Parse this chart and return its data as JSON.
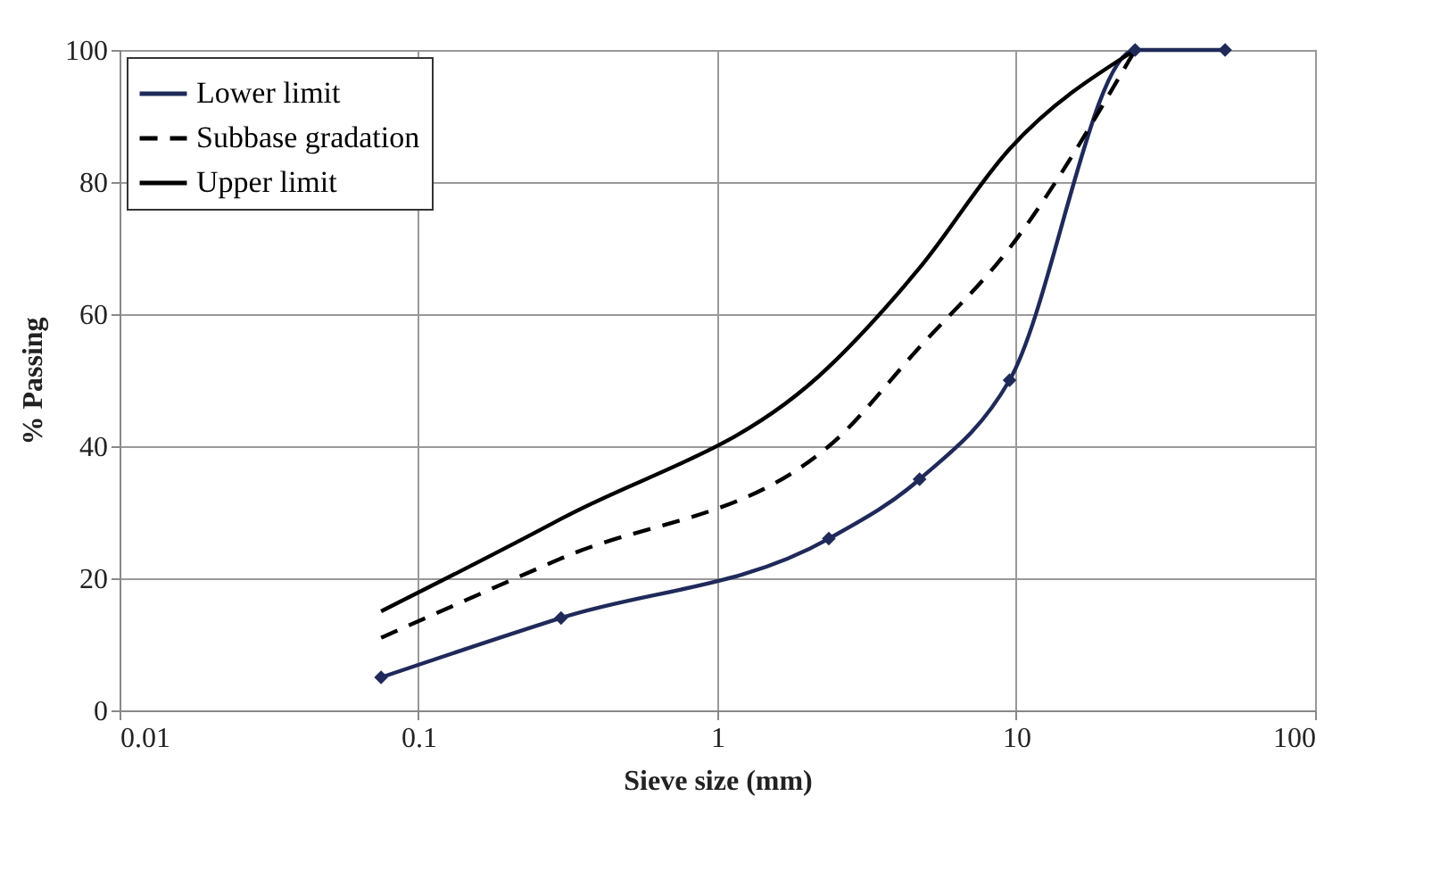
{
  "chart_data": {
    "type": "line",
    "xlabel": "Sieve size (mm)",
    "ylabel": "% Passing",
    "log": "x",
    "xlim": [
      0.01,
      100
    ],
    "xticks": [
      0.01,
      0.1,
      1,
      10,
      100
    ],
    "ylim": [
      0,
      100
    ],
    "yticks": [
      0,
      20,
      40,
      60,
      80,
      100
    ],
    "grid": true,
    "legend": "top left",
    "series": [
      {
        "name": "Lower limit",
        "color": "#1f2a5a",
        "marker": "diamond",
        "line_style": "solid",
        "x": [
          0.075,
          0.3,
          2.36,
          4.75,
          9.5,
          25,
          50
        ],
        "values": [
          5,
          14,
          26,
          35,
          50,
          100,
          100
        ]
      },
      {
        "name": "Subbase gradation",
        "color": "#000000",
        "marker": "none",
        "line_style": "dashed",
        "x": [
          0.075,
          0.3,
          2.36,
          4.75,
          9.5,
          25
        ],
        "values": [
          11,
          23,
          40,
          55,
          70,
          100
        ]
      },
      {
        "name": "Upper limit",
        "color": "#000000",
        "marker": "none",
        "line_style": "solid",
        "x": [
          0.075,
          0.3,
          2.36,
          4.75,
          9.5,
          25
        ],
        "values": [
          15,
          29,
          52,
          67,
          85,
          100
        ]
      }
    ]
  }
}
